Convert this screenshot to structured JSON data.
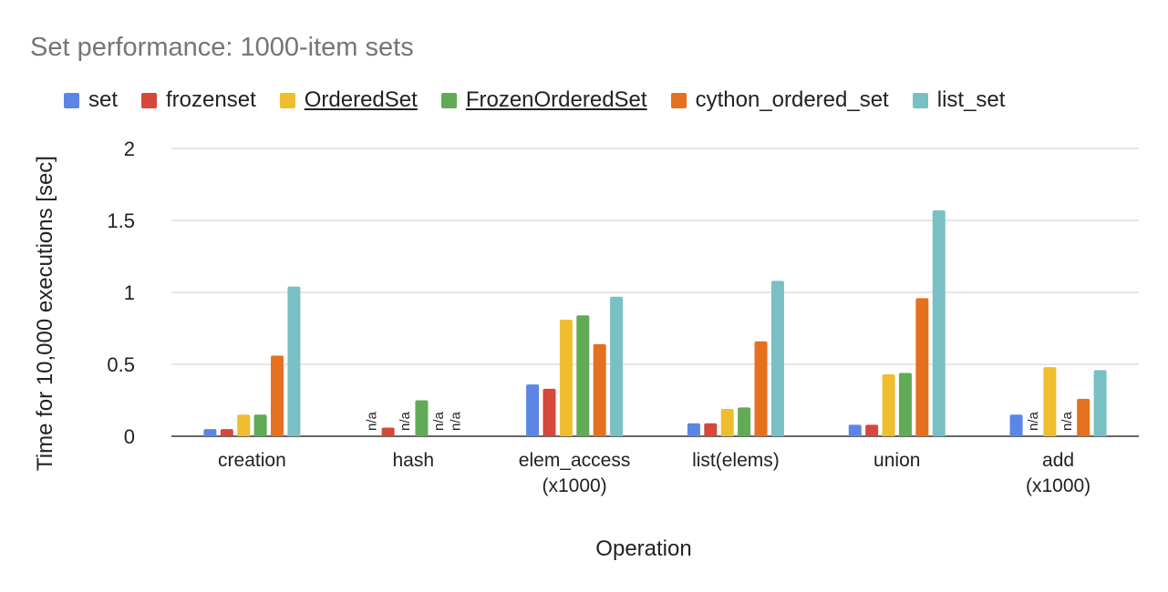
{
  "chart_data": {
    "type": "bar",
    "title": "Set performance: 1000-item sets",
    "xlabel": "Operation",
    "ylabel": "Time for 10,000 executions [sec]",
    "ylim": [
      0,
      2
    ],
    "yticks": [
      "0",
      "0.5",
      "1",
      "1.5",
      "2"
    ],
    "grid": true,
    "legend_position": "top",
    "categories": [
      [
        "creation"
      ],
      [
        "hash"
      ],
      [
        "elem_access",
        "(x1000)"
      ],
      [
        "list(elems)"
      ],
      [
        "union"
      ],
      [
        "add",
        "(x1000)"
      ]
    ],
    "na_label": "n/a",
    "series": [
      {
        "name": "set",
        "color": "#5b86e5",
        "underline": false,
        "values": [
          0.05,
          null,
          0.36,
          0.09,
          0.08,
          0.15
        ]
      },
      {
        "name": "frozenset",
        "color": "#d5483b",
        "underline": false,
        "values": [
          0.05,
          0.06,
          0.33,
          0.09,
          0.08,
          null
        ]
      },
      {
        "name": "OrderedSet",
        "color": "#f0bd30",
        "underline": true,
        "values": [
          0.15,
          null,
          0.81,
          0.19,
          0.43,
          0.48
        ]
      },
      {
        "name": "FrozenOrderedSet",
        "color": "#61aa56",
        "underline": true,
        "values": [
          0.15,
          0.25,
          0.84,
          0.2,
          0.44,
          null
        ]
      },
      {
        "name": "cython_ordered_set",
        "color": "#e5701f",
        "underline": false,
        "values": [
          0.56,
          null,
          0.64,
          0.66,
          0.96,
          0.26
        ]
      },
      {
        "name": "list_set",
        "color": "#79c0c4",
        "underline": false,
        "values": [
          1.04,
          null,
          0.97,
          1.08,
          1.57,
          0.46
        ]
      }
    ]
  }
}
